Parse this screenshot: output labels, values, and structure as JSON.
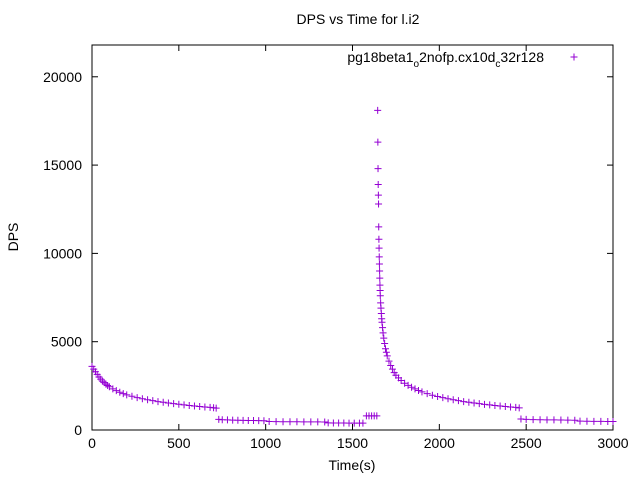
{
  "chart_data": {
    "type": "scatter",
    "title": "DPS vs Time for l.i2",
    "xlabel": "Time(s)",
    "ylabel": "DPS",
    "xlim": [
      0,
      3000
    ],
    "ylim": [
      0,
      21800
    ],
    "xticks": [
      "0",
      "500",
      "1000",
      "1500",
      "2000",
      "2500",
      "3000"
    ],
    "yticks": [
      "0",
      "5000",
      "10000",
      "15000",
      "20000"
    ],
    "xtick_values": [
      0,
      500,
      1000,
      1500,
      2000,
      2500,
      3000
    ],
    "ytick_values": [
      0,
      5000,
      10000,
      15000,
      20000
    ],
    "grid": false,
    "legend": {
      "position": "top-right",
      "base": "pg18beta1",
      "sub1": "o",
      "mid": "2nofp.cx10d",
      "sub2": "c",
      "tail": "32r128"
    },
    "series": [
      {
        "color": "#9400d3",
        "marker": "plus",
        "points": [
          [
            0,
            3600
          ],
          [
            10,
            3450
          ],
          [
            20,
            3300
          ],
          [
            30,
            3150
          ],
          [
            40,
            3000
          ],
          [
            50,
            2880
          ],
          [
            60,
            2770
          ],
          [
            70,
            2680
          ],
          [
            80,
            2600
          ],
          [
            90,
            2520
          ],
          [
            100,
            2450
          ],
          [
            120,
            2330
          ],
          [
            140,
            2230
          ],
          [
            160,
            2140
          ],
          [
            180,
            2060
          ],
          [
            200,
            1990
          ],
          [
            230,
            1910
          ],
          [
            260,
            1830
          ],
          [
            290,
            1770
          ],
          [
            320,
            1710
          ],
          [
            350,
            1660
          ],
          [
            380,
            1610
          ],
          [
            410,
            1570
          ],
          [
            440,
            1530
          ],
          [
            470,
            1490
          ],
          [
            500,
            1460
          ],
          [
            530,
            1420
          ],
          [
            560,
            1390
          ],
          [
            590,
            1360
          ],
          [
            620,
            1330
          ],
          [
            650,
            1300
          ],
          [
            680,
            1280
          ],
          [
            700,
            1260
          ],
          [
            715,
            1240
          ],
          [
            730,
            600
          ],
          [
            750,
            580
          ],
          [
            780,
            570
          ],
          [
            810,
            560
          ],
          [
            840,
            550
          ],
          [
            870,
            545
          ],
          [
            900,
            540
          ],
          [
            930,
            535
          ],
          [
            960,
            530
          ],
          [
            990,
            525
          ],
          [
            1020,
            480
          ],
          [
            1060,
            475
          ],
          [
            1100,
            470
          ],
          [
            1140,
            468
          ],
          [
            1180,
            465
          ],
          [
            1220,
            462
          ],
          [
            1260,
            460
          ],
          [
            1300,
            458
          ],
          [
            1340,
            455
          ],
          [
            1360,
            400
          ],
          [
            1390,
            398
          ],
          [
            1420,
            396
          ],
          [
            1450,
            394
          ],
          [
            1480,
            392
          ],
          [
            1510,
            390
          ],
          [
            1540,
            388
          ],
          [
            1560,
            386
          ],
          [
            1580,
            800
          ],
          [
            1595,
            800
          ],
          [
            1610,
            800
          ],
          [
            1625,
            800
          ],
          [
            1640,
            800
          ],
          [
            1645,
            18100
          ],
          [
            1646,
            16300
          ],
          [
            1647,
            14800
          ],
          [
            1648,
            13900
          ],
          [
            1649,
            13300
          ],
          [
            1650,
            12800
          ],
          [
            1651,
            11500
          ],
          [
            1652,
            10800
          ],
          [
            1653,
            10300
          ],
          [
            1654,
            9800
          ],
          [
            1655,
            9400
          ],
          [
            1656,
            9000
          ],
          [
            1657,
            8600
          ],
          [
            1658,
            8200
          ],
          [
            1659,
            7900
          ],
          [
            1660,
            7600
          ],
          [
            1662,
            7200
          ],
          [
            1664,
            6900
          ],
          [
            1666,
            6600
          ],
          [
            1668,
            6300
          ],
          [
            1670,
            6100
          ],
          [
            1673,
            5800
          ],
          [
            1676,
            5500
          ],
          [
            1680,
            5200
          ],
          [
            1685,
            4900
          ],
          [
            1690,
            4600
          ],
          [
            1695,
            4400
          ],
          [
            1700,
            4200
          ],
          [
            1710,
            3900
          ],
          [
            1720,
            3650
          ],
          [
            1730,
            3450
          ],
          [
            1740,
            3250
          ],
          [
            1750,
            3100
          ],
          [
            1765,
            2950
          ],
          [
            1780,
            2800
          ],
          [
            1800,
            2650
          ],
          [
            1820,
            2530
          ],
          [
            1840,
            2420
          ],
          [
            1860,
            2330
          ],
          [
            1880,
            2240
          ],
          [
            1900,
            2160
          ],
          [
            1930,
            2060
          ],
          [
            1960,
            1970
          ],
          [
            1990,
            1900
          ],
          [
            2020,
            1830
          ],
          [
            2050,
            1770
          ],
          [
            2080,
            1710
          ],
          [
            2110,
            1660
          ],
          [
            2140,
            1610
          ],
          [
            2170,
            1570
          ],
          [
            2200,
            1530
          ],
          [
            2230,
            1490
          ],
          [
            2260,
            1450
          ],
          [
            2290,
            1420
          ],
          [
            2320,
            1390
          ],
          [
            2350,
            1360
          ],
          [
            2380,
            1330
          ],
          [
            2410,
            1300
          ],
          [
            2440,
            1280
          ],
          [
            2460,
            1250
          ],
          [
            2470,
            620
          ],
          [
            2500,
            600
          ],
          [
            2540,
            590
          ],
          [
            2580,
            580
          ],
          [
            2620,
            575
          ],
          [
            2660,
            570
          ],
          [
            2700,
            565
          ],
          [
            2740,
            560
          ],
          [
            2780,
            555
          ],
          [
            2810,
            500
          ],
          [
            2850,
            495
          ],
          [
            2890,
            490
          ],
          [
            2930,
            487
          ],
          [
            2970,
            484
          ],
          [
            3000,
            480
          ]
        ]
      }
    ]
  }
}
